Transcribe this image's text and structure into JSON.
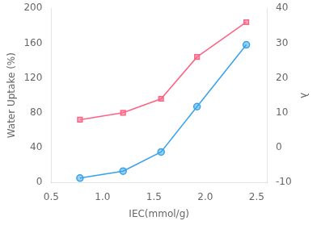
{
  "chart_data": {
    "type": "line",
    "xlabel": "IEC(mmol/g)",
    "ylabel": "Water Uptake (%)",
    "y2label": "λ",
    "x": [
      0.78,
      1.2,
      1.57,
      1.92,
      2.4
    ],
    "series": [
      {
        "values": [
          5,
          13,
          35,
          87,
          158
        ],
        "marker": "circle"
      },
      {
        "values": [
          8,
          10,
          14,
          26,
          36
        ],
        "marker": "square",
        "axis": "y2"
      }
    ],
    "xlim": [
      0.5,
      2.6
    ],
    "xticks": [
      0.5,
      {
        "value": 1.0,
        "label": "1.0"
      },
      1.5,
      {
        "value": 2.0,
        "label": "2.0"
      },
      2.5
    ],
    "ylim": [
      0,
      200
    ],
    "yticks": [
      0,
      40,
      80,
      120,
      160,
      200
    ],
    "y2lim": [
      -10,
      40
    ],
    "y2ticks": [
      -10,
      0,
      10,
      20,
      30,
      40
    ],
    "grid": false
  }
}
